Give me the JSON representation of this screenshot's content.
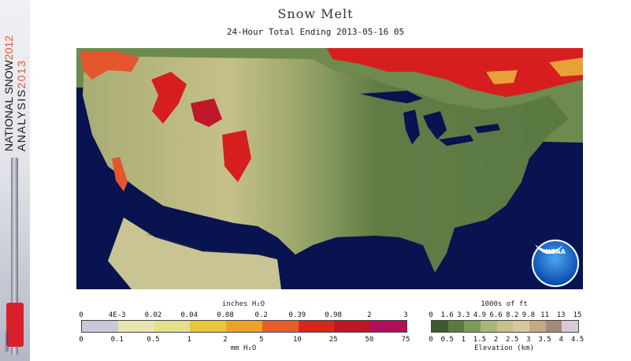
{
  "branding": {
    "line1": "NATIONAL SNOW",
    "year1": "2012",
    "line2": "ANALYSIS",
    "year2": "2013",
    "org": "NOHRSC"
  },
  "title": "Snow Melt",
  "subtitle": "24-Hour Total Ending 2013-05-16 05",
  "logo": {
    "label": "NOAA"
  },
  "colors": {
    "ocean": "#08134f",
    "land_low": "#5d7a44",
    "land_high": "#c9c48a",
    "melt_high": "#d71e1e",
    "accent_orange": "#e4572e"
  },
  "melt_legend": {
    "title": "inches H₂O",
    "unit": "mm H₂O",
    "inch_ticks": [
      "0",
      "4E-3",
      "0.02",
      "0.04",
      "0.08",
      "0.2",
      "0.39",
      "0.98",
      "2",
      "3"
    ],
    "mm_ticks": [
      "0",
      "0.1",
      "0.5",
      "1",
      "2",
      "5",
      "10",
      "25",
      "50",
      "75"
    ],
    "swatches": [
      "#c8c8d8",
      "#e8e6b0",
      "#e2e08a",
      "#e8c83a",
      "#eca228",
      "#e4602a",
      "#d8261c",
      "#c01428",
      "#b0105a"
    ]
  },
  "elevation_legend": {
    "title": "1000s of ft",
    "unit": "Elevation (km)",
    "ft_ticks": [
      "0",
      "1.6",
      "3.3",
      "4.9",
      "6.6",
      "8.2",
      "9.8",
      "11",
      "13",
      "15"
    ],
    "km_ticks": [
      "0",
      "0.5",
      "1",
      "1.5",
      "2",
      "2.5",
      "3",
      "3.5",
      "4",
      "4.5"
    ],
    "swatches": [
      "#3e5a2e",
      "#5a7a44",
      "#7e9a5a",
      "#a8b47a",
      "#c6c08a",
      "#d6c89e",
      "#c4a884",
      "#a68a78",
      "#d8c8d8"
    ]
  }
}
